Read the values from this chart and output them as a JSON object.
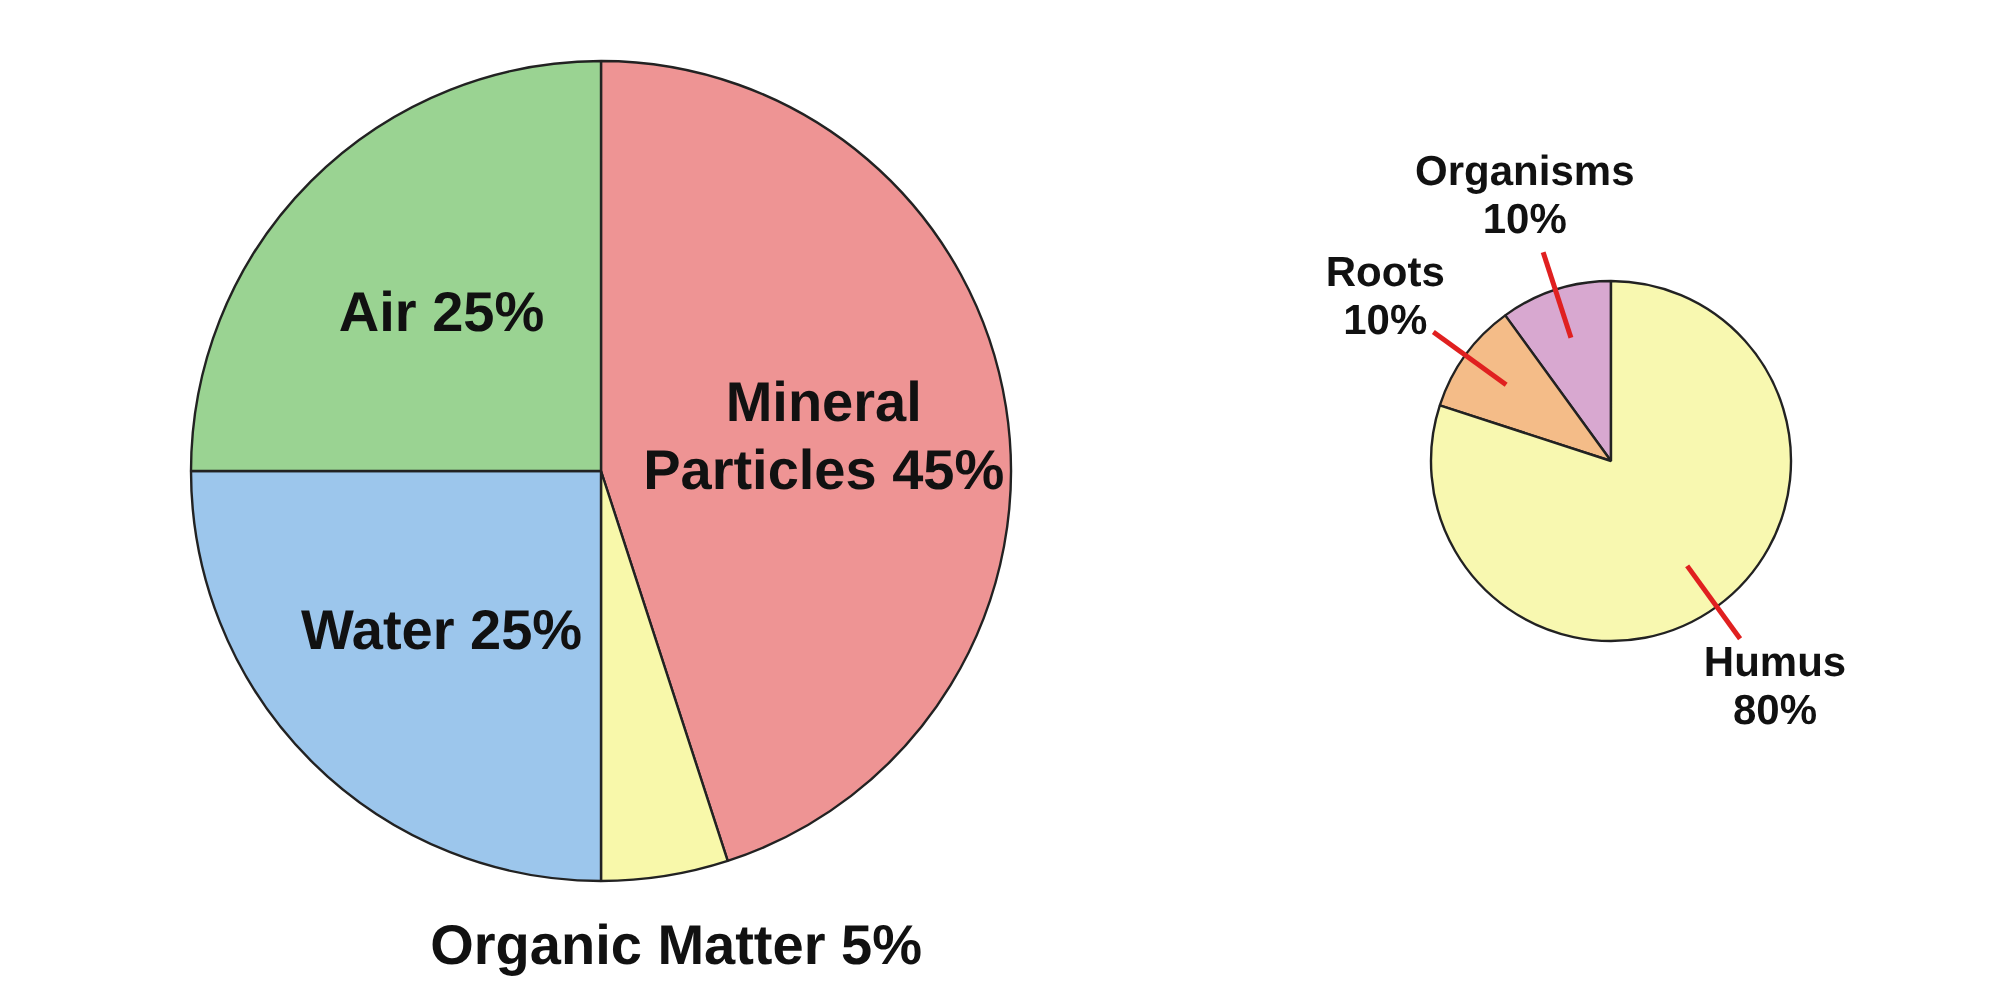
{
  "chart_data": [
    {
      "type": "pie",
      "categories": [
        "Mineral Particles",
        "Organic Matter",
        "Water",
        "Air"
      ],
      "values": [
        45,
        5,
        25,
        25
      ],
      "value_labels": [
        "45%",
        "5%",
        "25%",
        "25%"
      ],
      "colors": [
        "#ee9494",
        "#f8f8aa",
        "#9cc6ec",
        "#9ad392"
      ]
    },
    {
      "type": "pie",
      "categories": [
        "Organisms",
        "Roots",
        "Humus"
      ],
      "values": [
        10,
        10,
        80
      ],
      "value_labels": [
        "10%",
        "10%",
        "80%"
      ],
      "colors": [
        "#d8a8d0",
        "#f4bc88",
        "#f8f8b0"
      ]
    }
  ]
}
